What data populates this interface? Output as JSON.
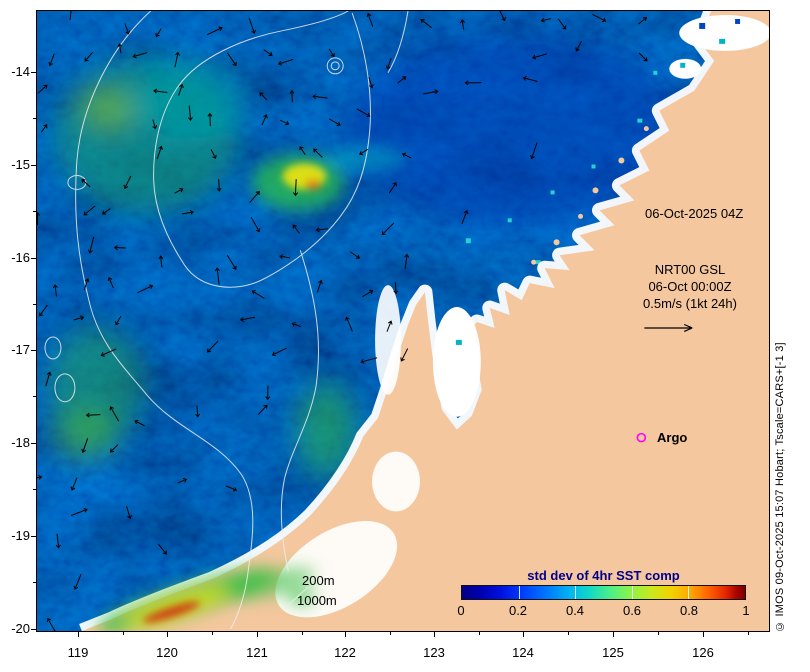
{
  "figure": {
    "date_label": "06-Oct-2025 04Z",
    "vector_legend": {
      "line1": "NRT00 GSL",
      "line2": "06-Oct 00:00Z",
      "line3": "0.5m/s (1kt 24h)"
    },
    "argo_label": "Argo",
    "depth_label_200": "200m",
    "depth_label_1000": "1000m",
    "credit": "© IMOS 09-Oct-2025 15:07 Hobart; Tscale=CARS+[-1 3]",
    "colorbar": {
      "title": "std dev of 4hr SST comp",
      "ticks": [
        "0",
        "0.2",
        "0.4",
        "0.6",
        "0.8",
        "1"
      ]
    },
    "axes": {
      "x_ticks": [
        "119",
        "120",
        "121",
        "122",
        "123",
        "124",
        "125",
        "126"
      ],
      "y_ticks": [
        "-14",
        "-15",
        "-16",
        "-17",
        "-18",
        "-19",
        "-20"
      ]
    },
    "colors": {
      "land": "#f5c79e",
      "ocean_base": "#000f8c",
      "contour": "#eeeeee",
      "argo_marker": "#ff00ff",
      "colorbar_title": "#00008b"
    }
  },
  "chart_data": {
    "type": "heatmap",
    "title": "std dev of 4hr SST comp",
    "colorbar_range": [
      0,
      1
    ],
    "colorbar_ticks": [
      0,
      0.2,
      0.4,
      0.6,
      0.8,
      1
    ],
    "x_ticks": [
      119,
      120,
      121,
      122,
      123,
      124,
      125,
      126
    ],
    "y_ticks": [
      -14,
      -15,
      -16,
      -17,
      -18,
      -19,
      -20
    ],
    "valid_time": "06-Oct-2025 04Z",
    "model_run": "NRT00 GSL 06-Oct 00:00Z",
    "vector_scale": "0.5m/s (1kt 24h)",
    "contour_depths": [
      "200m",
      "1000m"
    ],
    "markers": [
      {
        "name": "Argo",
        "color": "#ff00ff"
      }
    ]
  }
}
